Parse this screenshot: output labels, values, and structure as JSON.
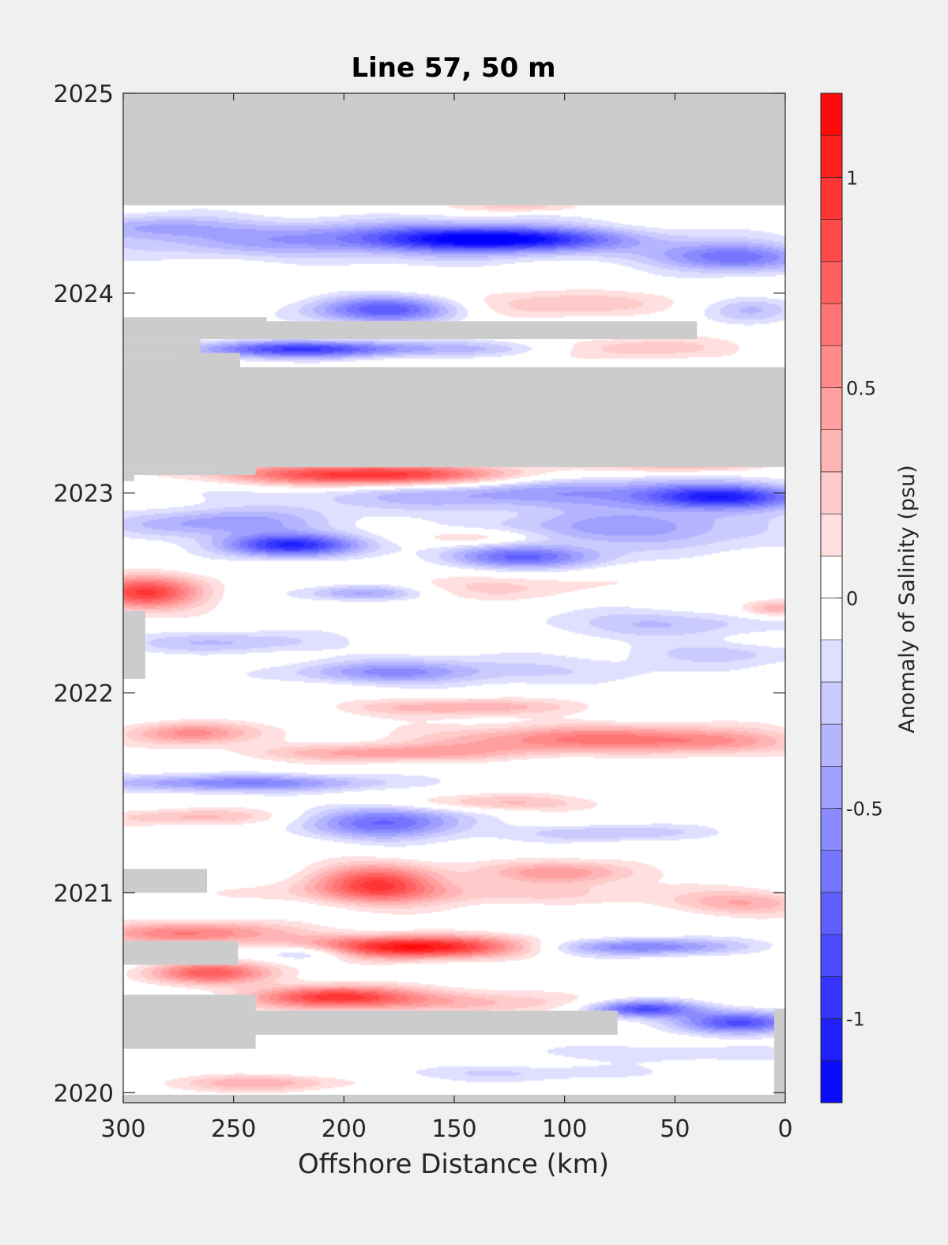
{
  "chart_data": {
    "type": "heatmap",
    "title": "Line 57, 50 m",
    "xlabel": "Offshore Distance (km)",
    "ylabel": "",
    "x_reversed": true,
    "xlim": [
      300,
      0
    ],
    "ylim": [
      2019.95,
      2025
    ],
    "x_ticks": [
      300,
      250,
      200,
      150,
      100,
      50,
      0
    ],
    "x_tick_labels": [
      "300",
      "250",
      "200",
      "150",
      "100",
      "50",
      "0"
    ],
    "y_ticks": [
      2020,
      2021,
      2022,
      2023,
      2024,
      2025
    ],
    "y_tick_labels": [
      "2020",
      "2021",
      "2022",
      "2023",
      "2024",
      "2025"
    ],
    "colorbar": {
      "label": "Anomaly of Salinity (psu)",
      "range": [
        -1.2,
        1.2
      ],
      "step": 0.1,
      "ticks": [
        -1,
        -0.5,
        0,
        0.5,
        1
      ],
      "tick_labels": [
        "-1",
        "-0.5",
        "0",
        "0.5",
        "1"
      ],
      "negative_color": "#0000ff",
      "zero_color": "#ffffff",
      "positive_color": "#ff0000"
    },
    "missing_color": "#cccccc",
    "missing_data_regions": [
      {
        "t0": 2024.44,
        "t1": 2025.0,
        "x0": 300,
        "x1": 0
      },
      {
        "t0": 2023.83,
        "t1": 2023.88,
        "x0": 300,
        "x1": 235
      },
      {
        "t0": 2023.77,
        "t1": 2023.86,
        "x0": 300,
        "x1": 40
      },
      {
        "t0": 2023.7,
        "t1": 2023.77,
        "x0": 300,
        "x1": 265
      },
      {
        "t0": 2023.63,
        "t1": 2023.7,
        "x0": 300,
        "x1": 247
      },
      {
        "t0": 2023.13,
        "t1": 2023.63,
        "x0": 300,
        "x1": 0
      },
      {
        "t0": 2023.09,
        "t1": 2023.13,
        "x0": 300,
        "x1": 240
      },
      {
        "t0": 2023.06,
        "t1": 2023.09,
        "x0": 300,
        "x1": 295
      },
      {
        "t0": 2022.07,
        "t1": 2022.41,
        "x0": 300,
        "x1": 290
      },
      {
        "t0": 2021.0,
        "t1": 2021.12,
        "x0": 300,
        "x1": 262
      },
      {
        "t0": 2020.64,
        "t1": 2020.76,
        "x0": 300,
        "x1": 248
      },
      {
        "t0": 2020.29,
        "t1": 2020.41,
        "x0": 300,
        "x1": 76
      },
      {
        "t0": 2020.22,
        "t1": 2020.49,
        "x0": 300,
        "x1": 240
      },
      {
        "t0": 2019.95,
        "t1": 2020.42,
        "x0": 5,
        "x1": 0
      },
      {
        "t0": 2019.95,
        "t1": 2019.99,
        "x0": 300,
        "x1": 0
      }
    ],
    "anomaly_features": [
      {
        "x": 130,
        "t": 2024.27,
        "sx": 35,
        "st": 0.04,
        "value": -1.0
      },
      {
        "x": 190,
        "t": 2024.27,
        "sx": 80,
        "st": 0.07,
        "value": -0.5
      },
      {
        "x": 25,
        "t": 2024.18,
        "sx": 25,
        "st": 0.05,
        "value": -0.7
      },
      {
        "x": 285,
        "t": 2024.33,
        "sx": 25,
        "st": 0.04,
        "value": -0.3
      },
      {
        "x": 120,
        "t": 2024.43,
        "sx": 20,
        "st": 0.02,
        "value": 0.3
      },
      {
        "x": 180,
        "t": 2023.92,
        "sx": 25,
        "st": 0.05,
        "value": -0.8
      },
      {
        "x": 110,
        "t": 2023.95,
        "sx": 40,
        "st": 0.05,
        "value": 0.3
      },
      {
        "x": 15,
        "t": 2023.92,
        "sx": 15,
        "st": 0.05,
        "value": -0.3
      },
      {
        "x": 220,
        "t": 2023.72,
        "sx": 35,
        "st": 0.03,
        "value": -0.9
      },
      {
        "x": 130,
        "t": 2023.72,
        "sx": 30,
        "st": 0.03,
        "value": -0.3
      },
      {
        "x": 70,
        "t": 2023.72,
        "sx": 35,
        "st": 0.04,
        "value": 0.3
      },
      {
        "x": 190,
        "t": 2023.09,
        "sx": 45,
        "st": 0.04,
        "value": 1.1
      },
      {
        "x": 45,
        "t": 2023.14,
        "sx": 25,
        "st": 0.03,
        "value": 0.4
      },
      {
        "x": 110,
        "t": 2023.0,
        "sx": 90,
        "st": 0.06,
        "value": -0.45
      },
      {
        "x": 30,
        "t": 2022.98,
        "sx": 25,
        "st": 0.04,
        "value": -0.8
      },
      {
        "x": 225,
        "t": 2022.74,
        "sx": 22,
        "st": 0.04,
        "value": -1.0
      },
      {
        "x": 255,
        "t": 2022.85,
        "sx": 35,
        "st": 0.05,
        "value": -0.45
      },
      {
        "x": 120,
        "t": 2022.68,
        "sx": 25,
        "st": 0.04,
        "value": -0.7
      },
      {
        "x": 70,
        "t": 2022.82,
        "sx": 50,
        "st": 0.07,
        "value": -0.45
      },
      {
        "x": 140,
        "t": 2022.78,
        "sx": 20,
        "st": 0.03,
        "value": 0.35
      },
      {
        "x": 290,
        "t": 2022.5,
        "sx": 18,
        "st": 0.06,
        "value": 0.9
      },
      {
        "x": 190,
        "t": 2022.5,
        "sx": 20,
        "st": 0.03,
        "value": -0.5
      },
      {
        "x": 140,
        "t": 2022.53,
        "sx": 45,
        "st": 0.05,
        "value": 0.2
      },
      {
        "x": 5,
        "t": 2022.42,
        "sx": 10,
        "st": 0.03,
        "value": 0.4
      },
      {
        "x": 60,
        "t": 2022.35,
        "sx": 40,
        "st": 0.05,
        "value": -0.3
      },
      {
        "x": 250,
        "t": 2022.25,
        "sx": 35,
        "st": 0.04,
        "value": -0.3
      },
      {
        "x": 180,
        "t": 2022.1,
        "sx": 30,
        "st": 0.04,
        "value": -0.45
      },
      {
        "x": 120,
        "t": 2022.12,
        "sx": 50,
        "st": 0.05,
        "value": -0.2
      },
      {
        "x": 30,
        "t": 2022.2,
        "sx": 30,
        "st": 0.04,
        "value": -0.25
      },
      {
        "x": 270,
        "t": 2021.8,
        "sx": 20,
        "st": 0.04,
        "value": 0.55
      },
      {
        "x": 90,
        "t": 2021.77,
        "sx": 50,
        "st": 0.05,
        "value": 0.6
      },
      {
        "x": 150,
        "t": 2021.93,
        "sx": 35,
        "st": 0.03,
        "value": 0.4
      },
      {
        "x": 185,
        "t": 2021.7,
        "sx": 40,
        "st": 0.03,
        "value": 0.45
      },
      {
        "x": 30,
        "t": 2021.75,
        "sx": 25,
        "st": 0.04,
        "value": 0.3
      },
      {
        "x": 250,
        "t": 2021.55,
        "sx": 45,
        "st": 0.03,
        "value": -0.6
      },
      {
        "x": 180,
        "t": 2021.35,
        "sx": 25,
        "st": 0.06,
        "value": -0.7
      },
      {
        "x": 130,
        "t": 2021.45,
        "sx": 30,
        "st": 0.03,
        "value": 0.35
      },
      {
        "x": 80,
        "t": 2021.3,
        "sx": 30,
        "st": 0.03,
        "value": -0.3
      },
      {
        "x": 270,
        "t": 2021.38,
        "sx": 30,
        "st": 0.03,
        "value": 0.3
      },
      {
        "x": 185,
        "t": 2021.05,
        "sx": 20,
        "st": 0.07,
        "value": 0.8
      },
      {
        "x": 100,
        "t": 2021.1,
        "sx": 25,
        "st": 0.04,
        "value": 0.5
      },
      {
        "x": 20,
        "t": 2020.95,
        "sx": 25,
        "st": 0.04,
        "value": 0.4
      },
      {
        "x": 150,
        "t": 2021.0,
        "sx": 60,
        "st": 0.04,
        "value": 0.25
      },
      {
        "x": 170,
        "t": 2020.73,
        "sx": 35,
        "st": 0.04,
        "value": 1.15
      },
      {
        "x": 270,
        "t": 2020.8,
        "sx": 30,
        "st": 0.04,
        "value": 0.6
      },
      {
        "x": 65,
        "t": 2020.73,
        "sx": 30,
        "st": 0.03,
        "value": -0.6
      },
      {
        "x": 215,
        "t": 2020.7,
        "sx": 15,
        "st": 0.03,
        "value": -0.45
      },
      {
        "x": 260,
        "t": 2020.6,
        "sx": 20,
        "st": 0.04,
        "value": 0.75
      },
      {
        "x": 205,
        "t": 2020.48,
        "sx": 25,
        "st": 0.04,
        "value": 0.9
      },
      {
        "x": 140,
        "t": 2020.45,
        "sx": 40,
        "st": 0.04,
        "value": 0.35
      },
      {
        "x": 65,
        "t": 2020.42,
        "sx": 18,
        "st": 0.03,
        "value": -0.9
      },
      {
        "x": 20,
        "t": 2020.35,
        "sx": 20,
        "st": 0.04,
        "value": -0.8
      },
      {
        "x": 60,
        "t": 2020.2,
        "sx": 50,
        "st": 0.03,
        "value": -0.2
      },
      {
        "x": 240,
        "t": 2020.05,
        "sx": 30,
        "st": 0.03,
        "value": 0.35
      },
      {
        "x": 130,
        "t": 2020.1,
        "sx": 45,
        "st": 0.03,
        "value": -0.2
      }
    ]
  }
}
